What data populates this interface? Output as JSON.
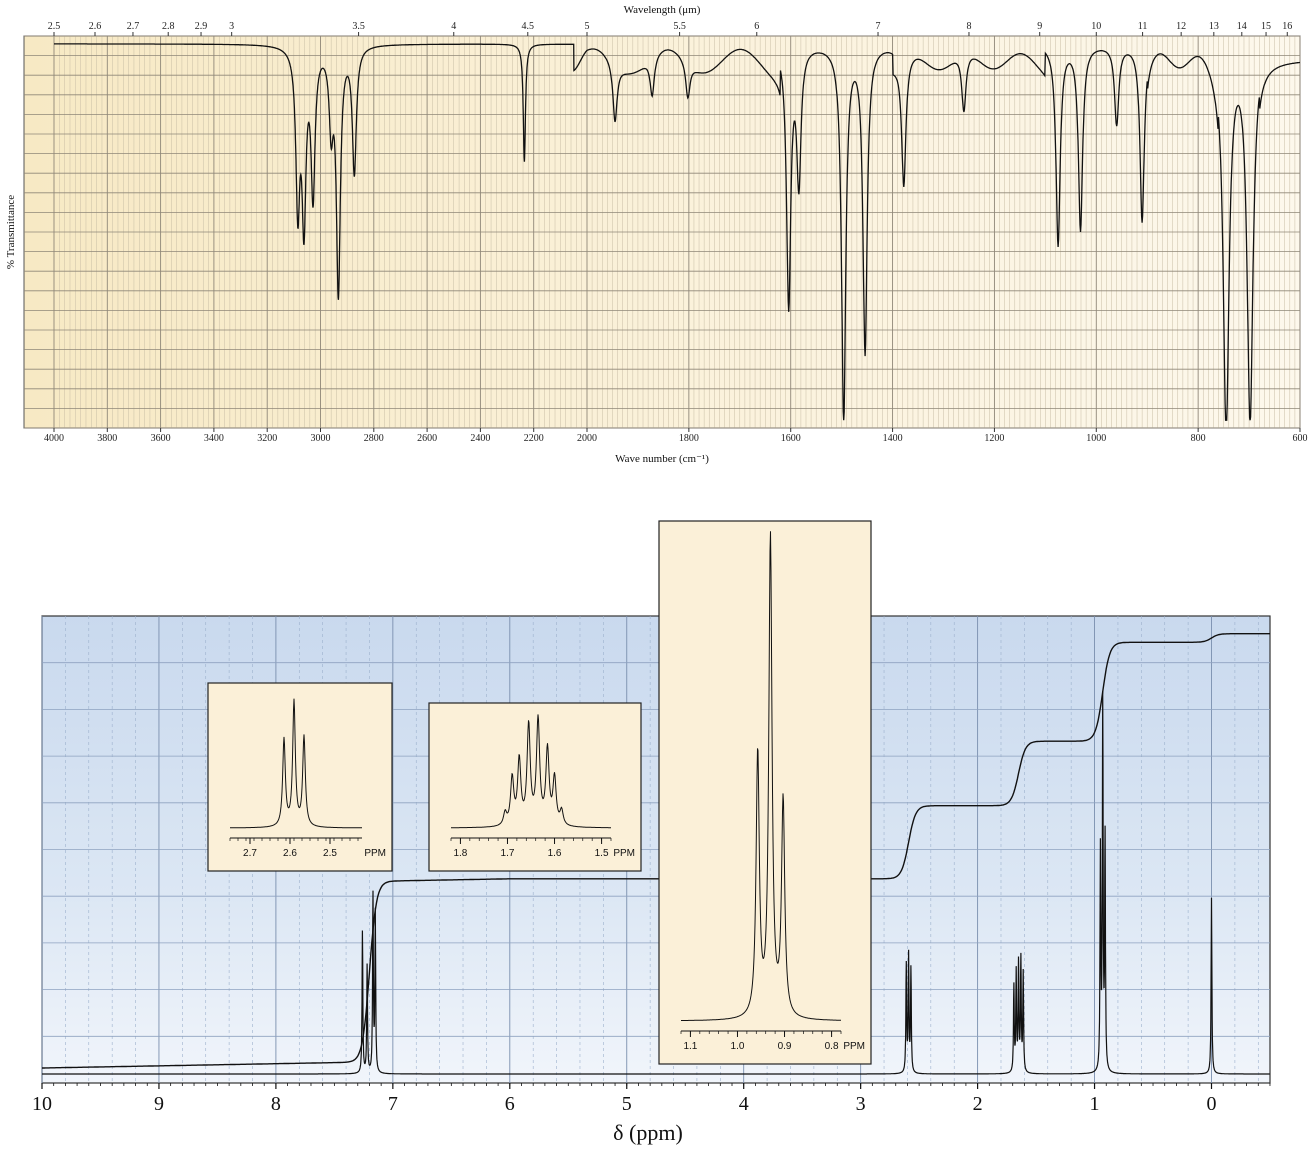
{
  "chart_data": [
    {
      "type": "line",
      "title": "",
      "xlabel": "Wave number (cm⁻¹)",
      "ylabel": "% Transmittance",
      "top_axis_label": "Wavelength (μm)",
      "xlim": [
        4000,
        600
      ],
      "ylim": [
        0,
        100
      ],
      "grid": true,
      "bottom_ticks": [
        "4000",
        "3800",
        "3600",
        "3400",
        "3200",
        "3000",
        "2800",
        "2600",
        "2400",
        "2200",
        "2000",
        "1800",
        "1600",
        "1400",
        "1200",
        "1000",
        "800",
        "600"
      ],
      "top_ticks": [
        "2.5",
        "2.6",
        "2.7",
        "2.8",
        "2.9",
        "3",
        "3.5",
        "4",
        "4.5",
        "5",
        "5.5",
        "6",
        "7",
        "8",
        "9",
        "10",
        "11",
        "12",
        "13",
        "14",
        "15",
        "16"
      ],
      "bands": [
        {
          "x": 3085,
          "depth": 40
        },
        {
          "x": 3062,
          "depth": 43
        },
        {
          "x": 3028,
          "depth": 37
        },
        {
          "x": 2960,
          "depth": 19
        },
        {
          "x": 2933,
          "depth": 62
        },
        {
          "x": 2873,
          "depth": 32
        },
        {
          "x": 2235,
          "depth": 30
        },
        {
          "x": 1945,
          "depth": 15
        },
        {
          "x": 1872,
          "depth": 10
        },
        {
          "x": 1802,
          "depth": 9
        },
        {
          "x": 1604,
          "depth": 66
        },
        {
          "x": 1584,
          "depth": 34
        },
        {
          "x": 1496,
          "depth": 96
        },
        {
          "x": 1454,
          "depth": 78
        },
        {
          "x": 1378,
          "depth": 33
        },
        {
          "x": 1260,
          "depth": 15
        },
        {
          "x": 1075,
          "depth": 51
        },
        {
          "x": 1031,
          "depth": 47
        },
        {
          "x": 960,
          "depth": 20
        },
        {
          "x": 910,
          "depth": 45
        },
        {
          "x": 745,
          "depth": 97
        },
        {
          "x": 698,
          "depth": 95
        }
      ]
    },
    {
      "type": "line",
      "title": "",
      "xlabel": "δ (ppm)",
      "ylabel": "",
      "xlim": [
        10,
        -0.5
      ],
      "grid": true,
      "ticks": [
        "10",
        "9",
        "8",
        "7",
        "6",
        "5",
        "4",
        "3",
        "2",
        "1",
        "0"
      ],
      "peaks": [
        {
          "shift": 7.26,
          "height": 0.33
        },
        {
          "shift": 7.22,
          "height": 0.25
        },
        {
          "shift": 7.17,
          "height": 0.41
        },
        {
          "shift": 7.15,
          "height": 0.37
        },
        {
          "shift": 2.61,
          "height": 0.25
        },
        {
          "shift": 2.59,
          "height": 0.27
        },
        {
          "shift": 2.57,
          "height": 0.24
        },
        {
          "shift": 1.69,
          "height": 0.2
        },
        {
          "shift": 1.67,
          "height": 0.23
        },
        {
          "shift": 1.65,
          "height": 0.25
        },
        {
          "shift": 1.63,
          "height": 0.26
        },
        {
          "shift": 1.61,
          "height": 0.23
        },
        {
          "shift": 0.95,
          "height": 0.51
        },
        {
          "shift": 0.93,
          "height": 0.85
        },
        {
          "shift": 0.91,
          "height": 0.54
        },
        {
          "shift": 0.0,
          "height": 0.41
        }
      ],
      "integral_steps": [
        {
          "shift": 7.2,
          "rise": 0.42
        },
        {
          "shift": 2.59,
          "rise": 0.17
        },
        {
          "shift": 1.65,
          "rise": 0.15
        },
        {
          "shift": 0.93,
          "rise": 0.23
        },
        {
          "shift": 0.0,
          "rise": 0.02
        }
      ],
      "insets": [
        {
          "ticks": [
            "2.7",
            "2.6",
            "2.5"
          ],
          "unit": "PPM",
          "xlim": [
            2.75,
            2.42
          ],
          "peaks": [
            {
              "shift": 2.615,
              "height": 0.7
            },
            {
              "shift": 2.59,
              "height": 1.0
            },
            {
              "shift": 2.565,
              "height": 0.72
            }
          ]
        },
        {
          "ticks": [
            "1.8",
            "1.7",
            "1.6",
            "1.5"
          ],
          "unit": "PPM",
          "xlim": [
            1.82,
            1.48
          ],
          "peaks": [
            {
              "shift": 1.705,
              "height": 0.12
            },
            {
              "shift": 1.69,
              "height": 0.45
            },
            {
              "shift": 1.675,
              "height": 0.62
            },
            {
              "shift": 1.655,
              "height": 0.95
            },
            {
              "shift": 1.635,
              "height": 1.0
            },
            {
              "shift": 1.615,
              "height": 0.72
            },
            {
              "shift": 1.6,
              "height": 0.45
            },
            {
              "shift": 1.585,
              "height": 0.14
            }
          ]
        },
        {
          "ticks": [
            "1.1",
            "1.0",
            "0.9",
            "0.8"
          ],
          "unit": "PPM",
          "xlim": [
            1.12,
            0.78
          ],
          "peaks": [
            {
              "shift": 0.957,
              "height": 0.55
            },
            {
              "shift": 0.93,
              "height": 1.0
            },
            {
              "shift": 0.903,
              "height": 0.45
            }
          ]
        }
      ]
    }
  ]
}
